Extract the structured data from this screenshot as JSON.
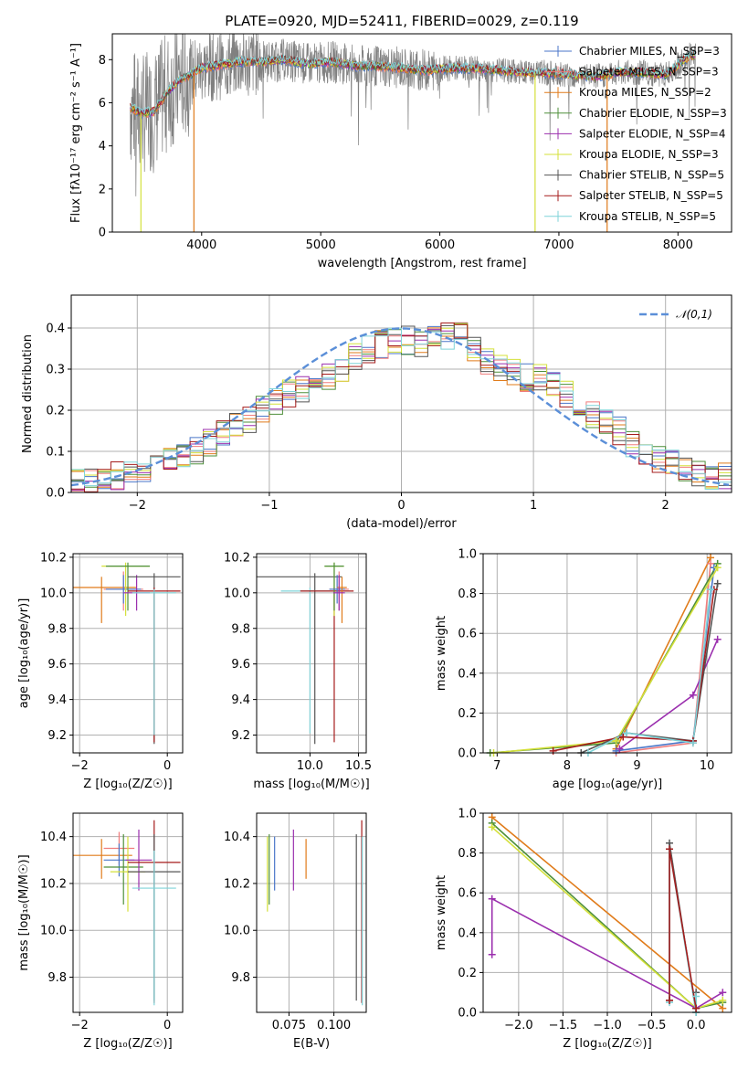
{
  "figure": {
    "title": "PLATE=0920, MJD=52411, FIBERID=0029, z=0.119"
  },
  "colors": {
    "Chabrier MILES": "#4a76c8",
    "Salpeter MILES": "#f07d7d",
    "Kroupa MILES": "#e07b1a",
    "Chabrier ELODIE": "#4e8f3a",
    "Salpeter ELODIE": "#9b2fae",
    "Kroupa ELODIE": "#d4e03a",
    "Chabrier STELIB": "#555555",
    "Salpeter STELIB": "#a51c1c",
    "Kroupa STELIB": "#7fd3d8",
    "Normal curve": "#5b8fd8"
  },
  "chart_data": [
    {
      "id": "spectrum",
      "type": "line",
      "xlabel": "wavelength [Angstrom, rest frame]",
      "ylabel": "Flux [fλ10⁻¹⁷ erg cm⁻² s⁻¹ A⁻¹]",
      "xlim": [
        3250,
        8450
      ],
      "ylim": [
        0,
        9.2
      ],
      "xticks": [
        "4000",
        "5000",
        "6000",
        "7000",
        "8000"
      ],
      "yticks": [
        "0",
        "2",
        "4",
        "6",
        "8"
      ],
      "legend_position": "right",
      "legend": [
        "Chabrier MILES, N_SSP=3",
        "Salpeter MILES, N_SSP=3",
        "Kroupa MILES, N_SSP=2",
        "Chabrier ELODIE, N_SSP=3",
        "Salpeter ELODIE, N_SSP=4",
        "Kroupa ELODIE, N_SSP=3",
        "Chabrier STELIB, N_SSP=5",
        "Salpeter STELIB, N_SSP=5",
        "Kroupa STELIB, N_SSP=5"
      ],
      "model_continuum": {
        "x": [
          3400,
          3500,
          3600,
          3700,
          3800,
          3900,
          4000,
          4100,
          4200,
          4300,
          4500,
          4700,
          4900,
          5100,
          5300,
          5500,
          5700,
          5900,
          6100,
          6300,
          6500,
          6700,
          6900,
          7100,
          7300,
          7500,
          7700,
          7900,
          8100
        ],
        "y": [
          5.8,
          5.5,
          5.6,
          6.4,
          7.0,
          7.3,
          7.6,
          7.7,
          7.8,
          7.9,
          7.9,
          8.0,
          7.8,
          7.9,
          7.7,
          7.7,
          7.6,
          7.5,
          7.6,
          7.6,
          7.5,
          7.4,
          7.4,
          7.3,
          7.2,
          7.4,
          7.4,
          7.3,
          8.2
        ]
      },
      "data_noise_amplitude": 1.1,
      "absorption_spikes": [
        {
          "x": 3490,
          "y": 0
        },
        {
          "x": 3935,
          "y": 0
        },
        {
          "x": 6800,
          "y": 0
        },
        {
          "x": 7405,
          "y": 0
        }
      ]
    },
    {
      "id": "residual-histogram",
      "type": "histogram",
      "xlabel": "(data-model)/error",
      "ylabel": "Normed distribution",
      "xlim": [
        -2.5,
        2.5
      ],
      "ylim": [
        0,
        0.48
      ],
      "xticks": [
        "−2",
        "−1",
        "0",
        "1",
        "2"
      ],
      "yticks": [
        "0.0",
        "0.1",
        "0.2",
        "0.3",
        "0.4"
      ],
      "legend_position": "top-right",
      "legend": [
        "𝒩(0,1)"
      ],
      "bin_width": 0.1,
      "note_values": "base histogram values per bin from -2.5 to 2.5",
      "base_values": [
        0.03,
        0.03,
        0.03,
        0.04,
        0.05,
        0.06,
        0.07,
        0.08,
        0.09,
        0.1,
        0.12,
        0.14,
        0.16,
        0.18,
        0.2,
        0.22,
        0.24,
        0.25,
        0.26,
        0.28,
        0.3,
        0.33,
        0.35,
        0.36,
        0.37,
        0.37,
        0.36,
        0.37,
        0.38,
        0.38,
        0.35,
        0.32,
        0.3,
        0.29,
        0.28,
        0.28,
        0.26,
        0.24,
        0.21,
        0.19,
        0.17,
        0.15,
        0.12,
        0.1,
        0.08,
        0.07,
        0.06,
        0.05,
        0.04,
        0.04
      ]
    },
    {
      "id": "age-vs-Z",
      "type": "errorbar",
      "xlabel": "Z [log₁₀(Z/Z☉)]",
      "ylabel": "age  [log₁₀(age/yr)]",
      "xlim": [
        -2.15,
        0.35
      ],
      "ylim": [
        9.1,
        10.22
      ],
      "xticks": [
        "−2",
        "0"
      ],
      "yticks": [
        "9.2",
        "9.4",
        "9.6",
        "9.8",
        "10.0",
        "10.2"
      ],
      "points": [
        {
          "model": "Kroupa MILES",
          "x": -1.5,
          "y": 10.03,
          "xerr": 0.8,
          "yerr": [
            0.2,
            0.06
          ]
        },
        {
          "model": "Salpeter MILES",
          "x": -1.0,
          "y": 10.02,
          "xerr": 0.45,
          "yerr": [
            0.12,
            0.1
          ]
        },
        {
          "model": "Chabrier MILES",
          "x": -1.0,
          "y": 10.02,
          "xerr": 0.4,
          "yerr": [
            0.08,
            0.08
          ]
        },
        {
          "model": "Kroupa ELODIE",
          "x": -0.95,
          "y": 10.15,
          "xerr": 0.55,
          "yerr": [
            0.28,
            0.02
          ]
        },
        {
          "model": "Chabrier ELODIE",
          "x": -0.9,
          "y": 10.15,
          "xerr": 0.5,
          "yerr": [
            0.25,
            0.02
          ]
        },
        {
          "model": "Salpeter ELODIE",
          "x": -0.7,
          "y": 10.0,
          "xerr": 0.3,
          "yerr": [
            0.1,
            0.1
          ]
        },
        {
          "model": "Chabrier STELIB",
          "x": -0.3,
          "y": 10.09,
          "xerr": 0.6,
          "yerr": [
            0.94,
            0.02
          ]
        },
        {
          "model": "Salpeter STELIB",
          "x": -0.3,
          "y": 10.01,
          "xerr": 0.6,
          "yerr": [
            0.85,
            0.02
          ]
        },
        {
          "model": "Kroupa STELIB",
          "x": -0.3,
          "y": 10.0,
          "xerr": 0.5,
          "yerr": [
            0.8,
            0.02
          ]
        }
      ]
    },
    {
      "id": "age-vs-mass",
      "type": "errorbar",
      "xlabel": "mass [log₁₀(M/M☉)]",
      "xlim": [
        9.45,
        10.58
      ],
      "ylim": [
        9.1,
        10.22
      ],
      "xticks": [
        "10.0",
        "10.5"
      ],
      "yticks": [
        "9.2",
        "9.4",
        "9.6",
        "9.8",
        "10.0",
        "10.2"
      ],
      "points": [
        {
          "model": "Chabrier STELIB",
          "x": 10.05,
          "y": 10.09,
          "xerr": [
            0.6,
            0.28
          ],
          "yerr": [
            0.94,
            0.02
          ]
        },
        {
          "model": "Kroupa STELIB",
          "x": 10.0,
          "y": 10.01,
          "xerr": [
            0.3,
            0.2
          ],
          "yerr": [
            0.8,
            0.02
          ]
        },
        {
          "model": "Salpeter STELIB",
          "x": 10.25,
          "y": 10.01,
          "xerr": [
            0.35,
            0.2
          ],
          "yerr": [
            0.85,
            0.02
          ]
        },
        {
          "model": "Kroupa ELODIE",
          "x": 10.25,
          "y": 10.15,
          "xerr": [
            0.1,
            0.1
          ],
          "yerr": [
            0.28,
            0.02
          ]
        },
        {
          "model": "Chabrier ELODIE",
          "x": 10.25,
          "y": 10.15,
          "xerr": [
            0.1,
            0.1
          ],
          "yerr": [
            0.25,
            0.02
          ]
        },
        {
          "model": "Salpeter MILES",
          "x": 10.3,
          "y": 10.02,
          "xerr": [
            0.1,
            0.1
          ],
          "yerr": [
            0.12,
            0.1
          ]
        },
        {
          "model": "Chabrier MILES",
          "x": 10.28,
          "y": 10.02,
          "xerr": [
            0.08,
            0.08
          ],
          "yerr": [
            0.08,
            0.08
          ]
        },
        {
          "model": "Kroupa MILES",
          "x": 10.33,
          "y": 10.03,
          "xerr": [
            0.05,
            0.05
          ],
          "yerr": [
            0.2,
            0.06
          ]
        },
        {
          "model": "Salpeter ELODIE",
          "x": 10.3,
          "y": 10.0,
          "xerr": [
            0.06,
            0.06
          ],
          "yerr": [
            0.1,
            0.1
          ]
        }
      ]
    },
    {
      "id": "mass-weight-vs-age",
      "type": "line",
      "xlabel": "age  [log₁₀(age/yr)]",
      "ylabel": "mass weight",
      "xlim": [
        6.8,
        10.35
      ],
      "ylim": [
        0,
        1.0
      ],
      "xticks": [
        "7",
        "8",
        "9",
        "10"
      ],
      "yticks": [
        "0.0",
        "0.2",
        "0.4",
        "0.6",
        "0.8",
        "1.0"
      ],
      "series": [
        {
          "model": "Kroupa MILES",
          "x": [
            8.7,
            10.05
          ],
          "y": [
            0.02,
            0.98
          ]
        },
        {
          "model": "Salpeter MILES",
          "x": [
            8.7,
            9.8,
            10.05
          ],
          "y": [
            0.0,
            0.05,
            0.95
          ]
        },
        {
          "model": "Chabrier MILES",
          "x": [
            8.7,
            9.8,
            10.1
          ],
          "y": [
            0.01,
            0.06,
            0.93
          ]
        },
        {
          "model": "Chabrier ELODIE",
          "x": [
            6.9,
            8.7,
            10.15
          ],
          "y": [
            0.0,
            0.05,
            0.95
          ]
        },
        {
          "model": "Kroupa ELODIE",
          "x": [
            6.95,
            8.7,
            10.15
          ],
          "y": [
            0.0,
            0.06,
            0.93
          ]
        },
        {
          "model": "Salpeter ELODIE",
          "x": [
            8.75,
            9.8,
            10.15
          ],
          "y": [
            0.02,
            0.29,
            0.57
          ]
        },
        {
          "model": "Chabrier STELIB",
          "x": [
            8.2,
            8.85,
            9.8,
            10.15
          ],
          "y": [
            0.0,
            0.1,
            0.06,
            0.85
          ]
        },
        {
          "model": "Salpeter STELIB",
          "x": [
            7.8,
            8.8,
            9.8,
            10.1
          ],
          "y": [
            0.01,
            0.08,
            0.06,
            0.82
          ]
        },
        {
          "model": "Kroupa STELIB",
          "x": [
            8.3,
            8.85,
            9.8,
            10.05
          ],
          "y": [
            0.0,
            0.1,
            0.05,
            0.82
          ]
        }
      ]
    },
    {
      "id": "mass-vs-Z",
      "type": "errorbar",
      "xlabel": "Z [log₁₀(Z/Z☉)]",
      "ylabel": "mass [log₁₀(M/M☉)]",
      "xlim": [
        -2.15,
        0.35
      ],
      "ylim": [
        9.65,
        10.5
      ],
      "xticks": [
        "−2",
        "0"
      ],
      "yticks": [
        "9.8",
        "10.0",
        "10.2",
        "10.4"
      ],
      "points": [
        {
          "model": "Kroupa MILES",
          "x": -1.5,
          "y": 10.32,
          "xerr": 0.7,
          "yerr": [
            0.1,
            0.07
          ]
        },
        {
          "model": "Salpeter MILES",
          "x": -1.1,
          "y": 10.35,
          "xerr": 0.35,
          "yerr": [
            0.07,
            0.07
          ]
        },
        {
          "model": "Chabrier MILES",
          "x": -1.1,
          "y": 10.3,
          "xerr": 0.35,
          "yerr": [
            0.07,
            0.07
          ]
        },
        {
          "model": "Chabrier ELODIE",
          "x": -1.0,
          "y": 10.27,
          "xerr": 0.45,
          "yerr": [
            0.16,
            0.14
          ]
        },
        {
          "model": "Kroupa ELODIE",
          "x": -0.9,
          "y": 10.25,
          "xerr": 0.4,
          "yerr": [
            0.17,
            0.15
          ]
        },
        {
          "model": "Salpeter ELODIE",
          "x": -0.65,
          "y": 10.3,
          "xerr": 0.3,
          "yerr": [
            0.13,
            0.13
          ]
        },
        {
          "model": "Salpeter STELIB",
          "x": -0.3,
          "y": 10.29,
          "xerr": 0.6,
          "yerr": [
            0.6,
            0.18
          ]
        },
        {
          "model": "Chabrier STELIB",
          "x": -0.3,
          "y": 10.25,
          "xerr": 0.6,
          "yerr": [
            0.55,
            0.16
          ]
        },
        {
          "model": "Kroupa STELIB",
          "x": -0.3,
          "y": 10.18,
          "xerr": 0.5,
          "yerr": [
            0.5,
            0.16
          ]
        }
      ]
    },
    {
      "id": "mass-vs-ebv",
      "type": "errorbar",
      "xlabel": "E(B-V)",
      "xlim": [
        0.057,
        0.118
      ],
      "ylim": [
        9.65,
        10.5
      ],
      "xticks": [
        "0.075",
        "0.100"
      ],
      "yticks": [
        "9.8",
        "10.0",
        "10.2",
        "10.4"
      ],
      "points": [
        {
          "model": "Kroupa ELODIE",
          "x": 0.063,
          "y": 10.25,
          "yerr": [
            0.17,
            0.15
          ]
        },
        {
          "model": "Chabrier ELODIE",
          "x": 0.064,
          "y": 10.27,
          "yerr": [
            0.16,
            0.14
          ]
        },
        {
          "model": "Chabrier MILES",
          "x": 0.067,
          "y": 10.3,
          "yerr": [
            0.13,
            0.1
          ]
        },
        {
          "model": "Salpeter ELODIE",
          "x": 0.0775,
          "y": 10.3,
          "yerr": [
            0.13,
            0.13
          ]
        },
        {
          "model": "Kroupa MILES",
          "x": 0.0845,
          "y": 10.32,
          "yerr": [
            0.1,
            0.07
          ]
        },
        {
          "model": "Chabrier STELIB",
          "x": 0.1125,
          "y": 10.25,
          "yerr": [
            0.55,
            0.16
          ]
        },
        {
          "model": "Salpeter STELIB",
          "x": 0.1155,
          "y": 10.29,
          "yerr": [
            0.6,
            0.18
          ]
        },
        {
          "model": "Kroupa STELIB",
          "x": 0.1158,
          "y": 10.18,
          "yerr": [
            0.5,
            0.22
          ]
        }
      ]
    },
    {
      "id": "mass-weight-vs-Z",
      "type": "line",
      "xlabel": "Z [log₁₀(Z/Z☉)]",
      "ylabel": "mass weight",
      "xlim": [
        -2.4,
        0.4
      ],
      "ylim": [
        0,
        1.0
      ],
      "xticks": [
        "−2.0",
        "−1.5",
        "−1.0",
        "−0.5",
        "0.0"
      ],
      "yticks": [
        "0.0",
        "0.2",
        "0.4",
        "0.6",
        "0.8",
        "1.0"
      ],
      "series": [
        {
          "model": "Kroupa MILES",
          "x": [
            -2.3,
            0.3
          ],
          "y": [
            0.98,
            0.02
          ]
        },
        {
          "model": "Chabrier ELODIE",
          "x": [
            -2.3,
            0.0,
            0.3
          ],
          "y": [
            0.95,
            0.02,
            0.05
          ]
        },
        {
          "model": "Kroupa ELODIE",
          "x": [
            -2.3,
            0.0,
            0.3
          ],
          "y": [
            0.93,
            0.02,
            0.06
          ]
        },
        {
          "model": "Salpeter ELODIE",
          "x": [
            -2.3,
            -2.3,
            0.0,
            0.3
          ],
          "y": [
            0.29,
            0.57,
            0.02,
            0.1
          ]
        },
        {
          "model": "Chabrier STELIB",
          "x": [
            -0.3,
            -0.3,
            0.0,
            0.0
          ],
          "y": [
            0.06,
            0.85,
            0.0,
            0.1
          ]
        },
        {
          "model": "Kroupa STELIB",
          "x": [
            -0.3,
            -0.3,
            0.0,
            0.0
          ],
          "y": [
            0.05,
            0.82,
            0.0,
            0.08
          ]
        },
        {
          "model": "Salpeter STELIB",
          "x": [
            -0.3,
            -0.3,
            0.0
          ],
          "y": [
            0.06,
            0.82,
            0.02
          ]
        }
      ]
    }
  ]
}
